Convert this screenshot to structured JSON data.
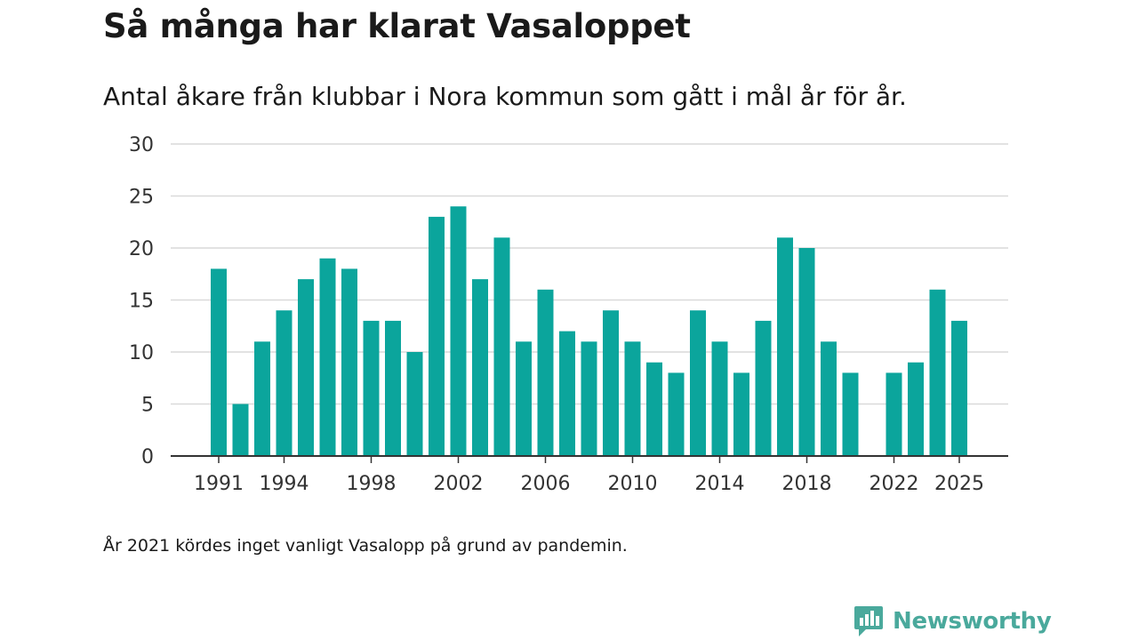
{
  "title": "Så många har klarat Vasaloppet",
  "subtitle": "Antal åkare från klubbar i Nora kommun som gått i mål år för år.",
  "note": "År 2021 kördes inget vanligt Vasalopp på grund av pandemin.",
  "brand": {
    "name": "Newsworthy",
    "icon": "newsworthy-logo-icon",
    "color": "#4aa99c"
  },
  "colors": {
    "bar": "#0ba59c",
    "grid": "#d9d9d9",
    "axis": "#333333"
  },
  "chart_data": {
    "type": "bar",
    "title": "Så många har klarat Vasaloppet",
    "subtitle": "Antal åkare från klubbar i Nora kommun som gått i mål år för år.",
    "xlabel": "",
    "ylabel": "",
    "ylim": [
      0,
      30
    ],
    "y_ticks": [
      0,
      5,
      10,
      15,
      20,
      25,
      30
    ],
    "x_tick_labels": [
      1991,
      1994,
      1998,
      2002,
      2006,
      2010,
      2014,
      2018,
      2022,
      2025
    ],
    "grid": true,
    "categories": [
      1991,
      1992,
      1993,
      1994,
      1995,
      1996,
      1997,
      1998,
      1999,
      2000,
      2001,
      2002,
      2003,
      2004,
      2005,
      2006,
      2007,
      2008,
      2009,
      2010,
      2011,
      2012,
      2013,
      2014,
      2015,
      2016,
      2017,
      2018,
      2019,
      2020,
      2021,
      2022,
      2023,
      2024,
      2025
    ],
    "values": [
      18,
      5,
      11,
      14,
      17,
      19,
      18,
      13,
      13,
      10,
      23,
      24,
      17,
      21,
      11,
      16,
      12,
      11,
      14,
      11,
      9,
      8,
      14,
      11,
      8,
      13,
      21,
      20,
      11,
      8,
      null,
      8,
      9,
      16,
      13
    ]
  }
}
